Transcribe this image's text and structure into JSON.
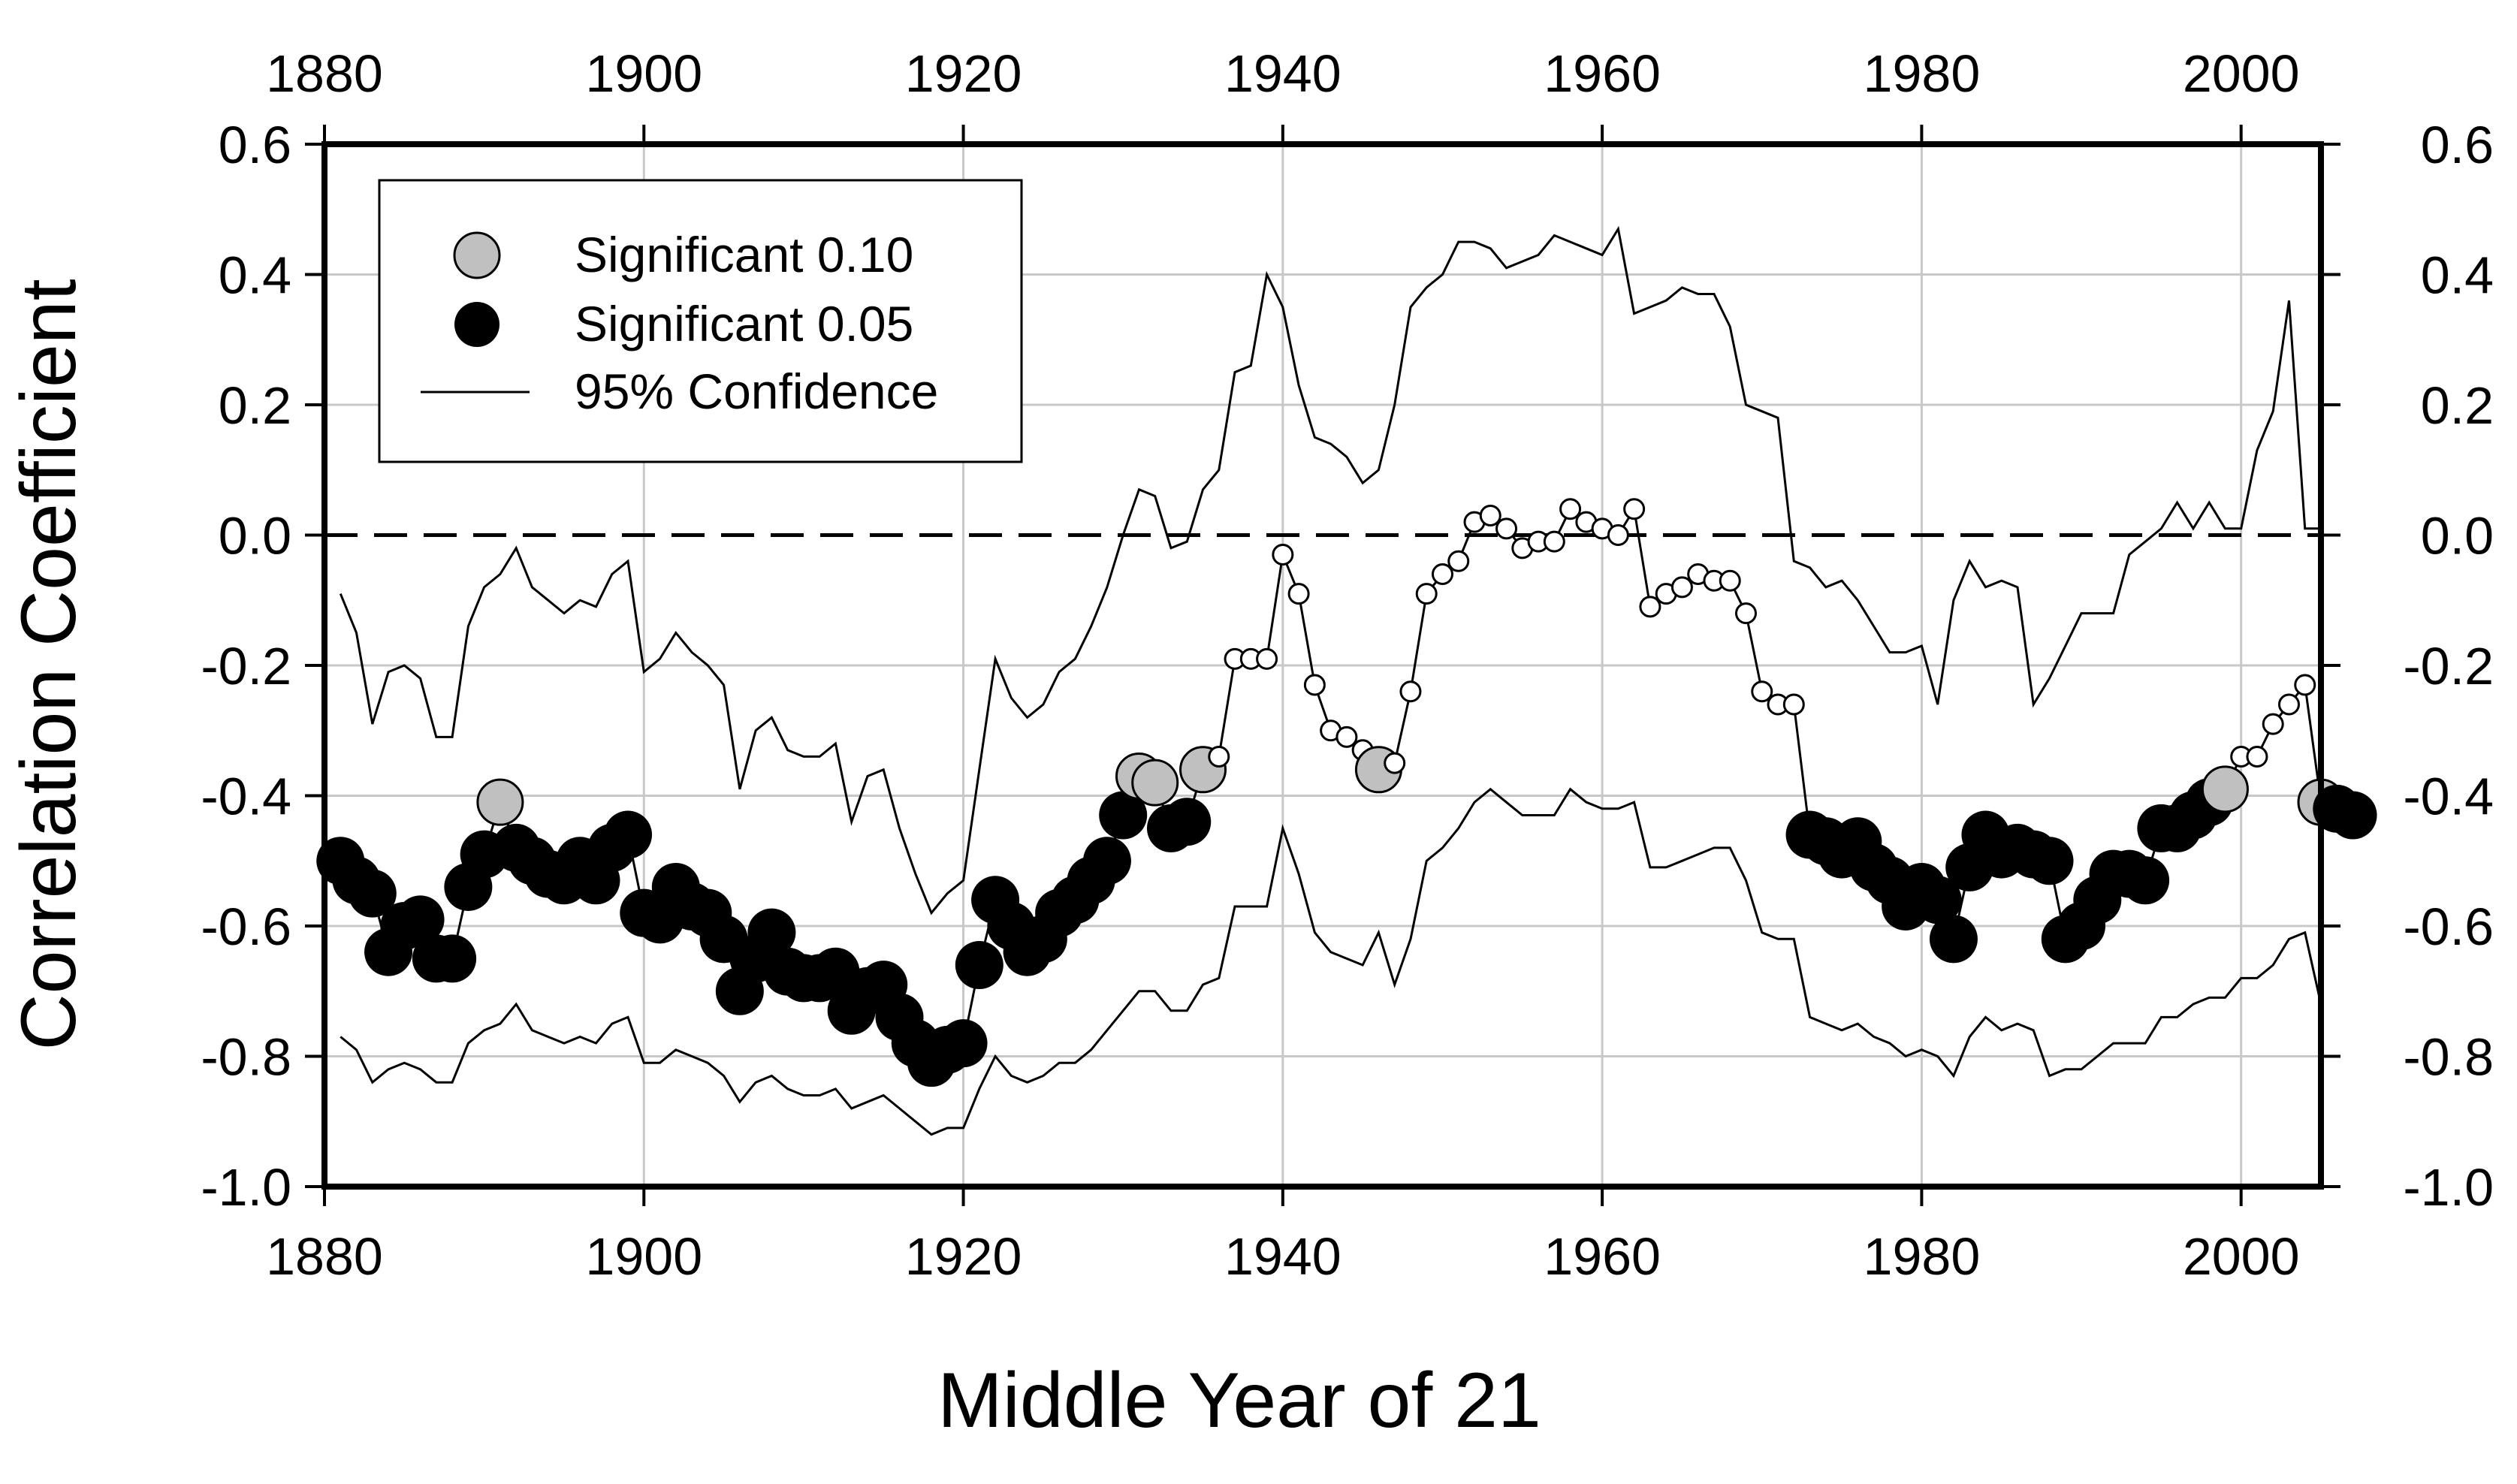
{
  "chart_data": {
    "type": "line",
    "xlabel": "Middle Year of 21",
    "ylabel": "Correlation Coefficient",
    "xlim": [
      1880,
      2005
    ],
    "ylim": [
      -1.0,
      0.6
    ],
    "x_ticks": [
      1880,
      1900,
      1920,
      1940,
      1960,
      1980,
      2000
    ],
    "y_ticks": [
      "0.6",
      "0.4",
      "0.2",
      "0.0",
      "-0.2",
      "-0.4",
      "-0.6",
      "-0.8",
      "-1.0"
    ],
    "y_tick_values": [
      0.6,
      0.4,
      0.2,
      0.0,
      -0.2,
      -0.4,
      -0.6,
      -0.8,
      -1.0
    ],
    "grid": true,
    "zero_line": "dashed",
    "legend": {
      "position": "top-left",
      "entries": [
        "Significant 0.10",
        "Significant 0.05",
        "95% Confidence"
      ]
    },
    "colors": {
      "sig10": "#c0c0c0",
      "sig05": "#000000",
      "nonsig": "#ffffff",
      "line": "#000000",
      "grid": "#c8c8c8"
    },
    "correlation": [
      [
        1881,
        -0.5,
        "s05"
      ],
      [
        1882,
        -0.53,
        "s05"
      ],
      [
        1883,
        -0.55,
        "s05"
      ],
      [
        1884,
        -0.64,
        "s05"
      ],
      [
        1885,
        -0.6,
        "s05"
      ],
      [
        1886,
        -0.59,
        "s05"
      ],
      [
        1887,
        -0.65,
        "s05"
      ],
      [
        1888,
        -0.65,
        "s05"
      ],
      [
        1889,
        -0.54,
        "s05"
      ],
      [
        1890,
        -0.49,
        "s05"
      ],
      [
        1891,
        -0.41,
        "s10"
      ],
      [
        1892,
        -0.48,
        "s05"
      ],
      [
        1893,
        -0.5,
        "s05"
      ],
      [
        1894,
        -0.52,
        "s05"
      ],
      [
        1895,
        -0.53,
        "s05"
      ],
      [
        1896,
        -0.5,
        "s05"
      ],
      [
        1897,
        -0.53,
        "s05"
      ],
      [
        1898,
        -0.48,
        "s05"
      ],
      [
        1899,
        -0.46,
        "s05"
      ],
      [
        1900,
        -0.58,
        "s05"
      ],
      [
        1901,
        -0.59,
        "s05"
      ],
      [
        1902,
        -0.54,
        "s05"
      ],
      [
        1903,
        -0.57,
        "s05"
      ],
      [
        1904,
        -0.58,
        "s05"
      ],
      [
        1905,
        -0.62,
        "s05"
      ],
      [
        1906,
        -0.7,
        "s05"
      ],
      [
        1907,
        -0.65,
        "s05"
      ],
      [
        1908,
        -0.61,
        "s05"
      ],
      [
        1909,
        -0.67,
        "s05"
      ],
      [
        1910,
        -0.68,
        "s05"
      ],
      [
        1911,
        -0.68,
        "s05"
      ],
      [
        1912,
        -0.67,
        "s05"
      ],
      [
        1913,
        -0.73,
        "s05"
      ],
      [
        1914,
        -0.7,
        "s05"
      ],
      [
        1915,
        -0.69,
        "s05"
      ],
      [
        1916,
        -0.74,
        "s05"
      ],
      [
        1917,
        -0.78,
        "s05"
      ],
      [
        1918,
        -0.81,
        "s05"
      ],
      [
        1919,
        -0.79,
        "s05"
      ],
      [
        1920,
        -0.78,
        "s05"
      ],
      [
        1921,
        -0.66,
        "s05"
      ],
      [
        1922,
        -0.56,
        "s05"
      ],
      [
        1923,
        -0.6,
        "s05"
      ],
      [
        1924,
        -0.64,
        "s05"
      ],
      [
        1925,
        -0.62,
        "s05"
      ],
      [
        1926,
        -0.58,
        "s05"
      ],
      [
        1927,
        -0.56,
        "s05"
      ],
      [
        1928,
        -0.53,
        "s05"
      ],
      [
        1929,
        -0.5,
        "s05"
      ],
      [
        1930,
        -0.43,
        "s05"
      ],
      [
        1931,
        -0.37,
        "s10"
      ],
      [
        1932,
        -0.38,
        "s10"
      ],
      [
        1933,
        -0.45,
        "s05"
      ],
      [
        1934,
        -0.44,
        "s05"
      ],
      [
        1935,
        -0.36,
        "s10"
      ],
      [
        1936,
        -0.34,
        "ns"
      ],
      [
        1937,
        -0.19,
        "ns"
      ],
      [
        1938,
        -0.19,
        "ns"
      ],
      [
        1939,
        -0.19,
        "ns"
      ],
      [
        1940,
        -0.03,
        "ns"
      ],
      [
        1941,
        -0.09,
        "ns"
      ],
      [
        1942,
        -0.23,
        "ns"
      ],
      [
        1943,
        -0.3,
        "ns"
      ],
      [
        1944,
        -0.31,
        "ns"
      ],
      [
        1945,
        -0.33,
        "ns"
      ],
      [
        1946,
        -0.36,
        "s10"
      ],
      [
        1947,
        -0.35,
        "ns"
      ],
      [
        1948,
        -0.24,
        "ns"
      ],
      [
        1949,
        -0.09,
        "ns"
      ],
      [
        1950,
        -0.06,
        "ns"
      ],
      [
        1951,
        -0.04,
        "ns"
      ],
      [
        1952,
        0.02,
        "ns"
      ],
      [
        1953,
        0.03,
        "ns"
      ],
      [
        1954,
        0.01,
        "ns"
      ],
      [
        1955,
        -0.02,
        "ns"
      ],
      [
        1956,
        -0.01,
        "ns"
      ],
      [
        1957,
        -0.01,
        "ns"
      ],
      [
        1958,
        0.04,
        "ns"
      ],
      [
        1959,
        0.02,
        "ns"
      ],
      [
        1960,
        0.01,
        "ns"
      ],
      [
        1961,
        0.0,
        "ns"
      ],
      [
        1962,
        0.04,
        "ns"
      ],
      [
        1963,
        -0.11,
        "ns"
      ],
      [
        1964,
        -0.09,
        "ns"
      ],
      [
        1965,
        -0.08,
        "ns"
      ],
      [
        1966,
        -0.06,
        "ns"
      ],
      [
        1967,
        -0.07,
        "ns"
      ],
      [
        1968,
        -0.07,
        "ns"
      ],
      [
        1969,
        -0.12,
        "ns"
      ],
      [
        1970,
        -0.24,
        "ns"
      ],
      [
        1971,
        -0.26,
        "ns"
      ],
      [
        1972,
        -0.26,
        "ns"
      ],
      [
        1973,
        -0.46,
        "s05"
      ],
      [
        1974,
        -0.47,
        "s05"
      ],
      [
        1975,
        -0.49,
        "s05"
      ],
      [
        1976,
        -0.47,
        "s05"
      ],
      [
        1977,
        -0.51,
        "s05"
      ],
      [
        1978,
        -0.53,
        "s05"
      ],
      [
        1979,
        -0.57,
        "s05"
      ],
      [
        1980,
        -0.54,
        "s05"
      ],
      [
        1981,
        -0.56,
        "s05"
      ],
      [
        1982,
        -0.62,
        "s05"
      ],
      [
        1983,
        -0.51,
        "s05"
      ],
      [
        1984,
        -0.46,
        "s05"
      ],
      [
        1985,
        -0.49,
        "s05"
      ],
      [
        1986,
        -0.48,
        "s05"
      ],
      [
        1987,
        -0.49,
        "s05"
      ],
      [
        1988,
        -0.5,
        "s05"
      ],
      [
        1989,
        -0.62,
        "s05"
      ],
      [
        1990,
        -0.6,
        "s05"
      ],
      [
        1991,
        -0.56,
        "s05"
      ],
      [
        1992,
        -0.52,
        "s05"
      ],
      [
        1993,
        -0.52,
        "s05"
      ],
      [
        1994,
        -0.53,
        "s05"
      ],
      [
        1995,
        -0.45,
        "s05"
      ],
      [
        1996,
        -0.45,
        "s05"
      ],
      [
        1997,
        -0.43,
        "s05"
      ],
      [
        1998,
        -0.41,
        "s05"
      ],
      [
        1999,
        -0.39,
        "s10"
      ],
      [
        2000,
        -0.34,
        "ns"
      ],
      [
        2001,
        -0.34,
        "ns"
      ],
      [
        2002,
        -0.29,
        "ns"
      ],
      [
        2003,
        -0.26,
        "ns"
      ],
      [
        2004,
        -0.23,
        "ns"
      ],
      [
        2005,
        -0.41,
        "s10"
      ],
      [
        2006,
        -0.42,
        "s05"
      ],
      [
        2007,
        -0.43,
        "s05"
      ]
    ],
    "upper_ci": [
      [
        1881,
        -0.09
      ],
      [
        1882,
        -0.15
      ],
      [
        1883,
        -0.29
      ],
      [
        1884,
        -0.21
      ],
      [
        1885,
        -0.2
      ],
      [
        1886,
        -0.22
      ],
      [
        1887,
        -0.31
      ],
      [
        1888,
        -0.31
      ],
      [
        1889,
        -0.14
      ],
      [
        1890,
        -0.08
      ],
      [
        1891,
        -0.06
      ],
      [
        1892,
        -0.02
      ],
      [
        1893,
        -0.08
      ],
      [
        1894,
        -0.1
      ],
      [
        1895,
        -0.12
      ],
      [
        1896,
        -0.1
      ],
      [
        1897,
        -0.11
      ],
      [
        1898,
        -0.06
      ],
      [
        1899,
        -0.04
      ],
      [
        1900,
        -0.21
      ],
      [
        1901,
        -0.19
      ],
      [
        1902,
        -0.15
      ],
      [
        1903,
        -0.18
      ],
      [
        1904,
        -0.2
      ],
      [
        1905,
        -0.23
      ],
      [
        1906,
        -0.39
      ],
      [
        1907,
        -0.3
      ],
      [
        1908,
        -0.28
      ],
      [
        1909,
        -0.33
      ],
      [
        1910,
        -0.34
      ],
      [
        1911,
        -0.34
      ],
      [
        1912,
        -0.32
      ],
      [
        1913,
        -0.44
      ],
      [
        1914,
        -0.37
      ],
      [
        1915,
        -0.36
      ],
      [
        1916,
        -0.45
      ],
      [
        1917,
        -0.52
      ],
      [
        1918,
        -0.58
      ],
      [
        1919,
        -0.55
      ],
      [
        1920,
        -0.53
      ],
      [
        1921,
        -0.36
      ],
      [
        1922,
        -0.19
      ],
      [
        1923,
        -0.25
      ],
      [
        1924,
        -0.28
      ],
      [
        1925,
        -0.26
      ],
      [
        1926,
        -0.21
      ],
      [
        1927,
        -0.19
      ],
      [
        1928,
        -0.14
      ],
      [
        1929,
        -0.08
      ],
      [
        1930,
        0.0
      ],
      [
        1931,
        0.07
      ],
      [
        1932,
        0.06
      ],
      [
        1933,
        -0.02
      ],
      [
        1934,
        -0.01
      ],
      [
        1935,
        0.07
      ],
      [
        1936,
        0.1
      ],
      [
        1937,
        0.25
      ],
      [
        1938,
        0.26
      ],
      [
        1939,
        0.4
      ],
      [
        1940,
        0.35
      ],
      [
        1941,
        0.23
      ],
      [
        1942,
        0.15
      ],
      [
        1943,
        0.14
      ],
      [
        1944,
        0.12
      ],
      [
        1945,
        0.08
      ],
      [
        1946,
        0.1
      ],
      [
        1947,
        0.2
      ],
      [
        1948,
        0.35
      ],
      [
        1949,
        0.38
      ],
      [
        1950,
        0.4
      ],
      [
        1951,
        0.45
      ],
      [
        1952,
        0.45
      ],
      [
        1953,
        0.44
      ],
      [
        1954,
        0.41
      ],
      [
        1955,
        0.42
      ],
      [
        1956,
        0.43
      ],
      [
        1957,
        0.46
      ],
      [
        1958,
        0.45
      ],
      [
        1959,
        0.44
      ],
      [
        1960,
        0.43
      ],
      [
        1961,
        0.47
      ],
      [
        1962,
        0.34
      ],
      [
        1963,
        0.35
      ],
      [
        1964,
        0.36
      ],
      [
        1965,
        0.38
      ],
      [
        1966,
        0.37
      ],
      [
        1967,
        0.37
      ],
      [
        1968,
        0.32
      ],
      [
        1969,
        0.2
      ],
      [
        1970,
        0.19
      ],
      [
        1971,
        0.18
      ],
      [
        1972,
        -0.04
      ],
      [
        1973,
        -0.05
      ],
      [
        1974,
        -0.08
      ],
      [
        1975,
        -0.07
      ],
      [
        1976,
        -0.1
      ],
      [
        1977,
        -0.14
      ],
      [
        1978,
        -0.18
      ],
      [
        1979,
        -0.18
      ],
      [
        1980,
        -0.17
      ],
      [
        1981,
        -0.26
      ],
      [
        1982,
        -0.1
      ],
      [
        1983,
        -0.04
      ],
      [
        1984,
        -0.08
      ],
      [
        1985,
        -0.07
      ],
      [
        1986,
        -0.08
      ],
      [
        1987,
        -0.26
      ],
      [
        1988,
        -0.22
      ],
      [
        1989,
        -0.17
      ],
      [
        1990,
        -0.12
      ],
      [
        1991,
        -0.12
      ],
      [
        1992,
        -0.12
      ],
      [
        1993,
        -0.03
      ],
      [
        1994,
        -0.01
      ],
      [
        1995,
        0.01
      ],
      [
        1996,
        0.05
      ],
      [
        1997,
        0.01
      ],
      [
        1998,
        0.05
      ],
      [
        1999,
        0.01
      ],
      [
        2000,
        0.01
      ],
      [
        2001,
        0.13
      ],
      [
        2002,
        0.19
      ],
      [
        2003,
        0.36
      ],
      [
        2004,
        0.01
      ],
      [
        2005,
        0.01
      ],
      [
        2006,
        0.01
      ]
    ],
    "lower_ci": [
      [
        1881,
        -0.77
      ],
      [
        1882,
        -0.79
      ],
      [
        1883,
        -0.84
      ],
      [
        1884,
        -0.82
      ],
      [
        1885,
        -0.81
      ],
      [
        1886,
        -0.82
      ],
      [
        1887,
        -0.84
      ],
      [
        1888,
        -0.84
      ],
      [
        1889,
        -0.78
      ],
      [
        1890,
        -0.76
      ],
      [
        1891,
        -0.75
      ],
      [
        1892,
        -0.72
      ],
      [
        1893,
        -0.76
      ],
      [
        1894,
        -0.77
      ],
      [
        1895,
        -0.78
      ],
      [
        1896,
        -0.77
      ],
      [
        1897,
        -0.78
      ],
      [
        1898,
        -0.75
      ],
      [
        1899,
        -0.74
      ],
      [
        1900,
        -0.81
      ],
      [
        1901,
        -0.81
      ],
      [
        1902,
        -0.79
      ],
      [
        1903,
        -0.8
      ],
      [
        1904,
        -0.81
      ],
      [
        1905,
        -0.83
      ],
      [
        1906,
        -0.87
      ],
      [
        1907,
        -0.84
      ],
      [
        1908,
        -0.83
      ],
      [
        1909,
        -0.85
      ],
      [
        1910,
        -0.86
      ],
      [
        1911,
        -0.86
      ],
      [
        1912,
        -0.85
      ],
      [
        1913,
        -0.88
      ],
      [
        1914,
        -0.87
      ],
      [
        1915,
        -0.86
      ],
      [
        1916,
        -0.88
      ],
      [
        1917,
        -0.9
      ],
      [
        1918,
        -0.92
      ],
      [
        1919,
        -0.91
      ],
      [
        1920,
        -0.91
      ],
      [
        1921,
        -0.85
      ],
      [
        1922,
        -0.8
      ],
      [
        1923,
        -0.83
      ],
      [
        1924,
        -0.84
      ],
      [
        1925,
        -0.83
      ],
      [
        1926,
        -0.81
      ],
      [
        1927,
        -0.81
      ],
      [
        1928,
        -0.79
      ],
      [
        1929,
        -0.76
      ],
      [
        1930,
        -0.73
      ],
      [
        1931,
        -0.7
      ],
      [
        1932,
        -0.7
      ],
      [
        1933,
        -0.73
      ],
      [
        1934,
        -0.73
      ],
      [
        1935,
        -0.69
      ],
      [
        1936,
        -0.68
      ],
      [
        1937,
        -0.57
      ],
      [
        1938,
        -0.57
      ],
      [
        1939,
        -0.57
      ],
      [
        1940,
        -0.45
      ],
      [
        1941,
        -0.52
      ],
      [
        1942,
        -0.61
      ],
      [
        1943,
        -0.64
      ],
      [
        1944,
        -0.65
      ],
      [
        1945,
        -0.66
      ],
      [
        1946,
        -0.61
      ],
      [
        1947,
        -0.69
      ],
      [
        1948,
        -0.62
      ],
      [
        1949,
        -0.5
      ],
      [
        1950,
        -0.48
      ],
      [
        1951,
        -0.45
      ],
      [
        1952,
        -0.41
      ],
      [
        1953,
        -0.39
      ],
      [
        1954,
        -0.41
      ],
      [
        1955,
        -0.43
      ],
      [
        1956,
        -0.43
      ],
      [
        1957,
        -0.43
      ],
      [
        1958,
        -0.39
      ],
      [
        1959,
        -0.41
      ],
      [
        1960,
        -0.42
      ],
      [
        1961,
        -0.42
      ],
      [
        1962,
        -0.41
      ],
      [
        1963,
        -0.51
      ],
      [
        1964,
        -0.51
      ],
      [
        1965,
        -0.5
      ],
      [
        1966,
        -0.49
      ],
      [
        1967,
        -0.48
      ],
      [
        1968,
        -0.48
      ],
      [
        1969,
        -0.53
      ],
      [
        1970,
        -0.61
      ],
      [
        1971,
        -0.62
      ],
      [
        1972,
        -0.62
      ],
      [
        1973,
        -0.74
      ],
      [
        1974,
        -0.75
      ],
      [
        1975,
        -0.76
      ],
      [
        1976,
        -0.75
      ],
      [
        1977,
        -0.77
      ],
      [
        1978,
        -0.78
      ],
      [
        1979,
        -0.8
      ],
      [
        1980,
        -0.79
      ],
      [
        1981,
        -0.8
      ],
      [
        1982,
        -0.83
      ],
      [
        1983,
        -0.77
      ],
      [
        1984,
        -0.74
      ],
      [
        1985,
        -0.76
      ],
      [
        1986,
        -0.75
      ],
      [
        1987,
        -0.76
      ],
      [
        1988,
        -0.83
      ],
      [
        1989,
        -0.82
      ],
      [
        1990,
        -0.82
      ],
      [
        1991,
        -0.8
      ],
      [
        1992,
        -0.78
      ],
      [
        1993,
        -0.78
      ],
      [
        1994,
        -0.78
      ],
      [
        1995,
        -0.74
      ],
      [
        1996,
        -0.74
      ],
      [
        1997,
        -0.72
      ],
      [
        1998,
        -0.71
      ],
      [
        1999,
        -0.71
      ],
      [
        2000,
        -0.68
      ],
      [
        2001,
        -0.68
      ],
      [
        2002,
        -0.66
      ],
      [
        2003,
        -0.62
      ],
      [
        2004,
        -0.61
      ],
      [
        2005,
        -0.72
      ],
      [
        2006,
        -0.72
      ],
      [
        2007,
        -0.72
      ]
    ]
  }
}
